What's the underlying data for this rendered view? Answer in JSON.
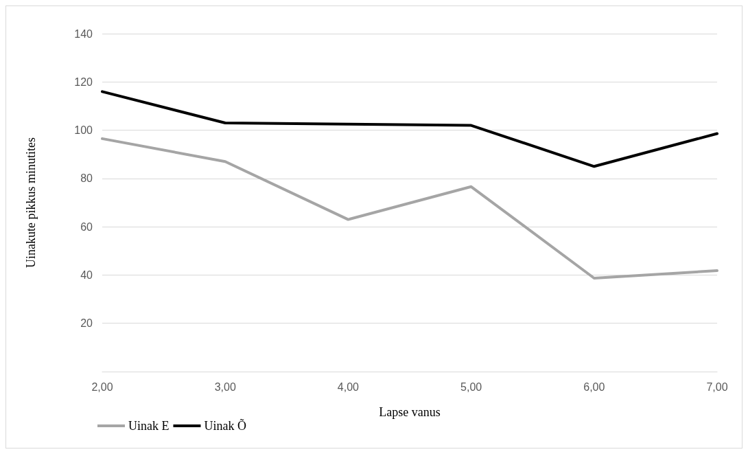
{
  "chart_data": {
    "type": "line",
    "xlabel": "Lapse vanus",
    "ylabel": "Uinakute pikkus minutites",
    "x": [
      2,
      3,
      4,
      5,
      6,
      7
    ],
    "series": [
      {
        "name": "Uinak E",
        "color": "#a5a5a5",
        "values": [
          96.5,
          87,
          63,
          76.6,
          38.7,
          41.8
        ]
      },
      {
        "name": "Uinak Õ",
        "color": "#000000",
        "values": [
          116,
          103,
          102.5,
          102,
          85,
          98.6
        ]
      }
    ],
    "xlim": [
      2,
      7
    ],
    "xticks": [
      {
        "value": 2,
        "label": "2,00"
      },
      {
        "value": 3,
        "label": "3,00"
      },
      {
        "value": 4,
        "label": "4,00"
      },
      {
        "value": 5,
        "label": "5,00"
      },
      {
        "value": 6,
        "label": "6,00"
      },
      {
        "value": 7,
        "label": "7,00"
      }
    ],
    "ylim": [
      0,
      140
    ],
    "yticks": [
      {
        "value": 0,
        "label": null
      },
      20,
      40,
      60,
      80,
      100,
      120,
      140
    ],
    "grid": "y",
    "legend": "bottom left",
    "marker": "none",
    "line_style": "solid"
  }
}
